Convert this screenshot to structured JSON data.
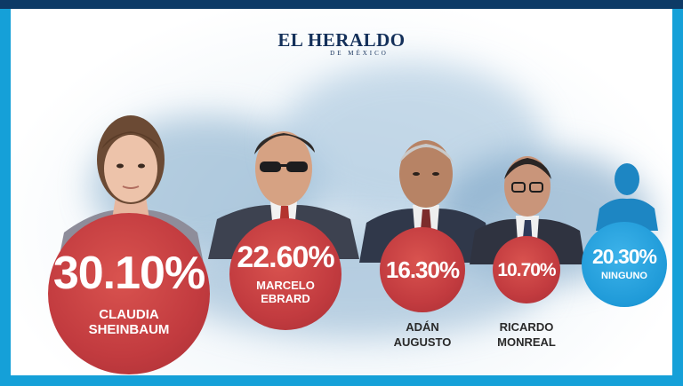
{
  "logo": {
    "main": "EL HERALDO",
    "sub": "DE MÉXICO"
  },
  "candidates": [
    {
      "percent": "30.10%",
      "name_line1": "CLAUDIA",
      "name_line2": "SHEINBAUM",
      "value": 30.1,
      "color": "#c23b3f"
    },
    {
      "percent": "22.60%",
      "name_line1": "MARCELO",
      "name_line2": "EBRARD",
      "value": 22.6,
      "color": "#c23b3f"
    },
    {
      "percent": "16.30%",
      "name_line1": "ADÁN",
      "name_line2": "AUGUSTO",
      "value": 16.3,
      "color": "#c23b3f"
    },
    {
      "percent": "10.70%",
      "name_line1": "RICARDO",
      "name_line2": "MONREAL",
      "value": 10.7,
      "color": "#c23b3f"
    },
    {
      "percent": "20.30%",
      "name_line1": "NINGUNO",
      "value": 20.3,
      "color": "#1f9ad8"
    }
  ]
}
